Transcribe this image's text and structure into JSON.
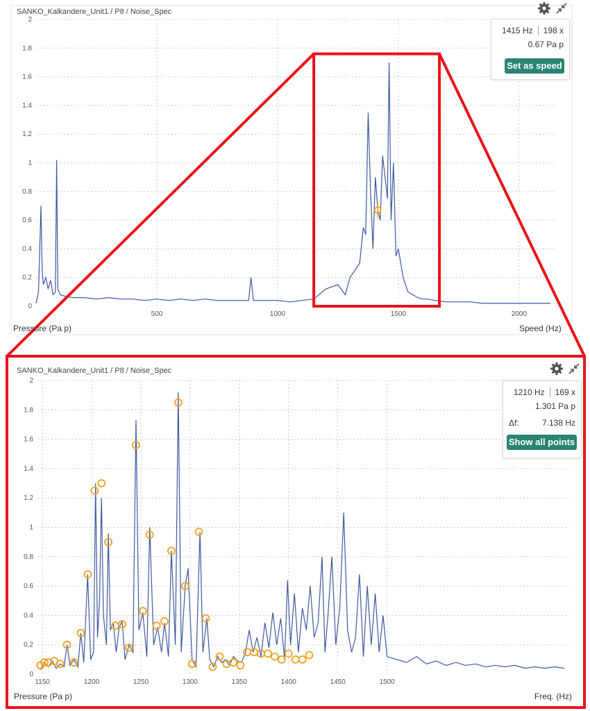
{
  "top_panel": {
    "title": "SANKO_Kalkandere_Unit1 / P8 / Noise_Spec",
    "info": {
      "freq": "1415 Hz",
      "order": "198 x",
      "amp": "0.67 Pa p"
    },
    "button_label": "Set as speed",
    "icons": [
      "gear-icon",
      "collapse-icon"
    ]
  },
  "bottom_panel": {
    "title": "SANKO_Kalkandere_Unit1 / P8 / Noise_Spec",
    "info": {
      "freq": "1210 Hz",
      "order": "169 x",
      "amp": "1.301 Pa p",
      "df_label": "Δf:",
      "df_value": "7.138 Hz"
    },
    "button_label": "Show all points",
    "icons": [
      "gear-icon",
      "collapse-icon"
    ]
  },
  "colors": {
    "trace": "#3f57a0",
    "marker": "#f0a020",
    "highlight": "#e8141a",
    "button": "#2a8572",
    "grid": "#cccccc"
  },
  "chart_data": [
    {
      "type": "line",
      "title": "SANKO_Kalkandere_Unit1 / P8 / Noise_Spec",
      "xlabel": "Speed (Hz)",
      "ylabel": "Pressure (Pa p)",
      "xlim": [
        0,
        2150
      ],
      "ylim": [
        0,
        2
      ],
      "xticks": [
        500,
        1000,
        1500,
        2000
      ],
      "yticks": [
        0,
        0.2,
        0.4,
        0.6,
        0.8,
        1,
        1.2,
        1.4,
        1.6,
        1.8,
        2
      ],
      "grid": true,
      "highlight_range": {
        "x": [
          1150,
          1670
        ],
        "y": [
          0,
          1.76
        ]
      },
      "marker": {
        "x": 1415,
        "y": 0.67
      },
      "series": [
        {
          "x": [
            0,
            10,
            20,
            25,
            30,
            40,
            50,
            60,
            70,
            80,
            85,
            90,
            100,
            120,
            150,
            200,
            250,
            300,
            350,
            400,
            450,
            500,
            550,
            600,
            650,
            700,
            750,
            800,
            850,
            880,
            890,
            900,
            950,
            1000,
            1050,
            1100,
            1150,
            1200,
            1250,
            1280,
            1300,
            1320,
            1340,
            1355,
            1365,
            1375,
            1385,
            1395,
            1405,
            1415,
            1425,
            1435,
            1445,
            1455,
            1462,
            1470,
            1480,
            1490,
            1500,
            1520,
            1540,
            1560,
            1580,
            1600,
            1620,
            1650,
            1700,
            1750,
            1800,
            1850,
            1900,
            1950,
            2000,
            2050,
            2100,
            2130
          ],
          "y": [
            0.02,
            0.1,
            0.7,
            0.25,
            0.15,
            0.2,
            0.12,
            0.18,
            0.08,
            0.1,
            1.02,
            0.12,
            0.08,
            0.07,
            0.06,
            0.06,
            0.05,
            0.06,
            0.05,
            0.05,
            0.04,
            0.05,
            0.04,
            0.05,
            0.04,
            0.05,
            0.04,
            0.04,
            0.04,
            0.04,
            0.2,
            0.04,
            0.04,
            0.04,
            0.03,
            0.04,
            0.05,
            0.12,
            0.15,
            0.08,
            0.2,
            0.25,
            0.3,
            0.55,
            0.5,
            1.35,
            0.8,
            0.4,
            0.9,
            0.67,
            0.6,
            1.05,
            0.9,
            0.75,
            1.7,
            0.6,
            1.0,
            0.35,
            0.4,
            0.2,
            0.1,
            0.08,
            0.06,
            0.05,
            0.05,
            0.04,
            0.03,
            0.03,
            0.03,
            0.02,
            0.02,
            0.02,
            0.02,
            0.02,
            0.02,
            0.02
          ]
        }
      ]
    },
    {
      "type": "line",
      "title": "SANKO_Kalkandere_Unit1 / P8 / Noise_Spec",
      "xlabel": "Freq. (Hz)",
      "ylabel": "Pressure (Pa p)",
      "xlim": [
        1145,
        1685
      ],
      "ylim": [
        0,
        2
      ],
      "xticks": [
        1150,
        1200,
        1250,
        1300,
        1350,
        1400,
        1450,
        1500
      ],
      "yticks": [
        0,
        0.2,
        0.4,
        0.6,
        0.8,
        1,
        1.2,
        1.4,
        1.6,
        1.8,
        2
      ],
      "grid": true,
      "series": [
        {
          "x": [
            1148,
            1152,
            1156,
            1160,
            1164,
            1168,
            1172,
            1175,
            1178,
            1182,
            1186,
            1189,
            1192,
            1196,
            1199,
            1202,
            1204,
            1206,
            1208,
            1210,
            1212,
            1215,
            1217,
            1219,
            1222,
            1225,
            1228,
            1231,
            1234,
            1238,
            1242,
            1245,
            1248,
            1252,
            1256,
            1259,
            1263,
            1267,
            1271,
            1274,
            1278,
            1281,
            1285,
            1288,
            1291,
            1295,
            1298,
            1302,
            1306,
            1310,
            1313,
            1317,
            1320,
            1324,
            1328,
            1332,
            1336,
            1340,
            1344,
            1348,
            1352,
            1356,
            1360,
            1364,
            1368,
            1372,
            1376,
            1380,
            1384,
            1388,
            1392,
            1396,
            1399,
            1402,
            1406,
            1410,
            1414,
            1418,
            1422,
            1426,
            1430,
            1434,
            1437,
            1440,
            1444,
            1448,
            1452,
            1456,
            1460,
            1464,
            1468,
            1472,
            1476,
            1480,
            1484,
            1488,
            1492,
            1496,
            1500,
            1510,
            1520,
            1530,
            1540,
            1550,
            1560,
            1570,
            1580,
            1590,
            1600,
            1610,
            1620,
            1630,
            1640,
            1650,
            1660,
            1670,
            1680
          ],
          "y": [
            0.03,
            0.08,
            0.05,
            0.09,
            0.04,
            0.07,
            0.05,
            0.2,
            0.06,
            0.1,
            0.05,
            0.28,
            0.08,
            0.68,
            0.1,
            0.15,
            1.3,
            0.25,
            0.5,
            1.2,
            0.4,
            0.2,
            0.96,
            0.3,
            0.35,
            0.15,
            0.32,
            0.36,
            0.1,
            0.2,
            0.15,
            1.73,
            0.3,
            0.42,
            0.12,
            1.0,
            0.2,
            0.32,
            0.15,
            0.35,
            0.12,
            0.84,
            0.2,
            1.92,
            0.15,
            0.6,
            0.72,
            0.1,
            0.05,
            0.97,
            0.15,
            0.38,
            0.1,
            0.05,
            0.12,
            0.08,
            0.1,
            0.06,
            0.12,
            0.09,
            0.08,
            0.14,
            0.3,
            0.15,
            0.25,
            0.12,
            0.35,
            0.18,
            0.42,
            0.2,
            0.38,
            0.1,
            0.64,
            0.2,
            0.55,
            0.15,
            0.45,
            0.3,
            0.6,
            0.25,
            0.35,
            0.8,
            0.15,
            0.4,
            0.8,
            0.2,
            0.45,
            1.1,
            0.3,
            0.15,
            0.25,
            0.68,
            0.12,
            0.6,
            0.2,
            0.55,
            0.15,
            0.4,
            0.12,
            0.1,
            0.08,
            0.12,
            0.07,
            0.09,
            0.06,
            0.08,
            0.06,
            0.07,
            0.05,
            0.06,
            0.05,
            0.06,
            0.04,
            0.05,
            0.04,
            0.05,
            0.04
          ]
        }
      ],
      "markers": {
        "x": [
          1148,
          1152,
          1156,
          1162,
          1168,
          1175,
          1182,
          1189,
          1196,
          1203,
          1210,
          1217,
          1224,
          1231,
          1238,
          1245,
          1252,
          1259,
          1266,
          1274,
          1281,
          1288,
          1295,
          1302,
          1309,
          1316,
          1323,
          1330,
          1337,
          1344,
          1351,
          1358,
          1365,
          1372,
          1379,
          1386,
          1393,
          1400,
          1407,
          1414,
          1421
        ],
        "y": [
          0.06,
          0.08,
          0.08,
          0.09,
          0.07,
          0.2,
          0.08,
          0.28,
          0.68,
          1.25,
          1.3,
          0.9,
          0.33,
          0.34,
          0.18,
          1.56,
          0.43,
          0.95,
          0.33,
          0.36,
          0.84,
          1.85,
          0.6,
          0.07,
          0.97,
          0.38,
          0.05,
          0.12,
          0.07,
          0.08,
          0.06,
          0.15,
          0.15,
          0.14,
          0.14,
          0.12,
          0.1,
          0.14,
          0.1,
          0.1,
          0.13
        ]
      }
    }
  ]
}
